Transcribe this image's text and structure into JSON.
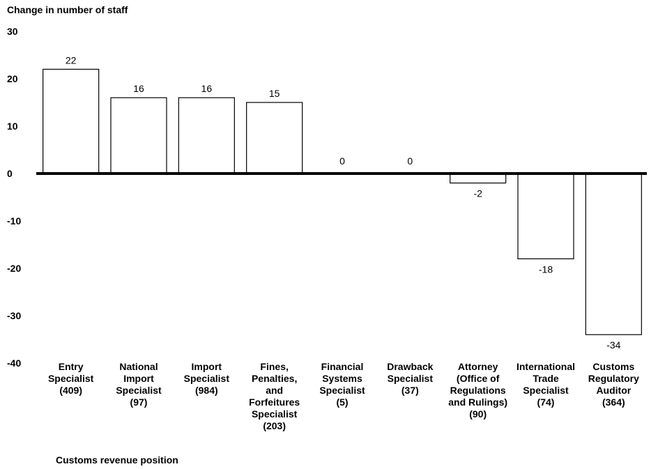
{
  "chart_data": {
    "type": "bar",
    "ylabel": "Change in number of staff",
    "xlabel": "Customs revenue position",
    "ylim": [
      -40,
      30
    ],
    "yticks": [
      30,
      20,
      10,
      0,
      -10,
      -20,
      -30,
      -40
    ],
    "categories": [
      "Entry\nSpecialist\n(409)",
      "National\nImport\nSpecialist\n(97)",
      "Import\nSpecialist\n(984)",
      "Fines,\nPenalties,\nand\nForfeitures\nSpecialist\n(203)",
      "Financial\nSystems\nSpecialist\n(5)",
      "Drawback\nSpecialist\n(37)",
      "Attorney\n(Office of\nRegulations\nand Rulings)\n(90)",
      "International\nTrade\nSpecialist\n(74)",
      "Customs\nRegulatory\nAuditor\n(364)"
    ],
    "values": [
      22,
      16,
      16,
      15,
      0,
      0,
      -2,
      -18,
      -34
    ],
    "grid": false,
    "bar_fill": "#ffffff",
    "bar_stroke": "#000000"
  }
}
